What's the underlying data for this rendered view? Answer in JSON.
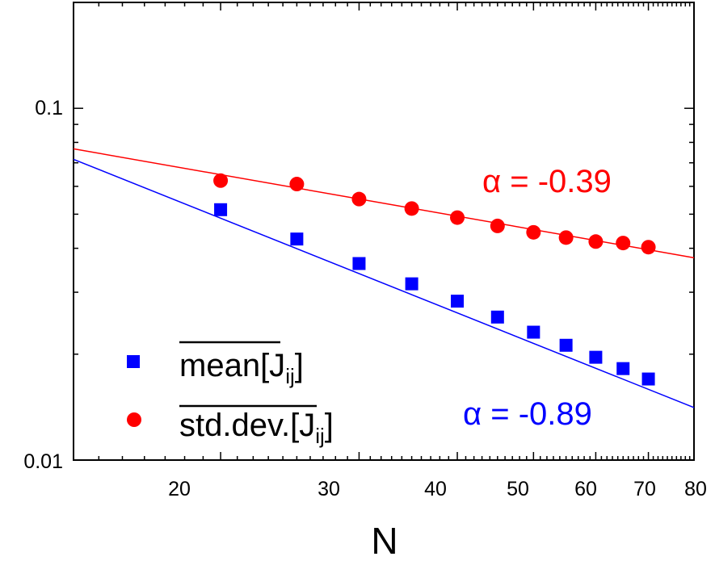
{
  "chart_data": {
    "type": "scatter",
    "xscale": "log",
    "yscale": "log",
    "xlim": [
      13,
      80
    ],
    "ylim": [
      0.01,
      0.2
    ],
    "xlabel": "N",
    "ylabel": "",
    "x_tick_labels": [
      "20",
      "30",
      "40",
      "50",
      "60",
      "70",
      "80"
    ],
    "y_tick_labels": [
      "0.01",
      "0.1"
    ],
    "grid": false,
    "legend_position": "bottom-left",
    "legend": [
      {
        "label": "mean",
        "suffix_main": "[J",
        "suffix_sub": "ij",
        "suffix_end": "]",
        "marker": "square",
        "color": "#0000ff"
      },
      {
        "label": "std.dev.",
        "suffix_main": "[J",
        "suffix_sub": "ij",
        "suffix_end": "]",
        "marker": "circle",
        "color": "#ff0000"
      }
    ],
    "series": [
      {
        "name": "mean[Jij]",
        "marker": "square",
        "color": "#0000ff",
        "x": [
          20,
          25,
          30,
          35,
          40,
          45,
          50,
          55,
          60,
          65,
          70
        ],
        "y": [
          0.0515,
          0.0425,
          0.0362,
          0.0317,
          0.0283,
          0.0255,
          0.0231,
          0.0212,
          0.0196,
          0.0182,
          0.017
        ],
        "fit": {
          "x": [
            13,
            80
          ],
          "y": [
            0.0716,
            0.0141
          ]
        }
      },
      {
        "name": "std.dev.[Jij]",
        "marker": "circle",
        "color": "#ff0000",
        "x": [
          20,
          25,
          30,
          35,
          40,
          45,
          50,
          55,
          60,
          65,
          70
        ],
        "y": [
          0.0623,
          0.0609,
          0.0552,
          0.0519,
          0.0489,
          0.0463,
          0.0444,
          0.0429,
          0.0418,
          0.0414,
          0.0403
        ],
        "fit": {
          "x": [
            13,
            80
          ],
          "y": [
            0.0767,
            0.0376
          ]
        }
      }
    ],
    "annotations": [
      {
        "text": "α = -0.39",
        "color": "#ff0000"
      },
      {
        "text": "α = -0.89",
        "color": "#0000ff"
      }
    ]
  }
}
